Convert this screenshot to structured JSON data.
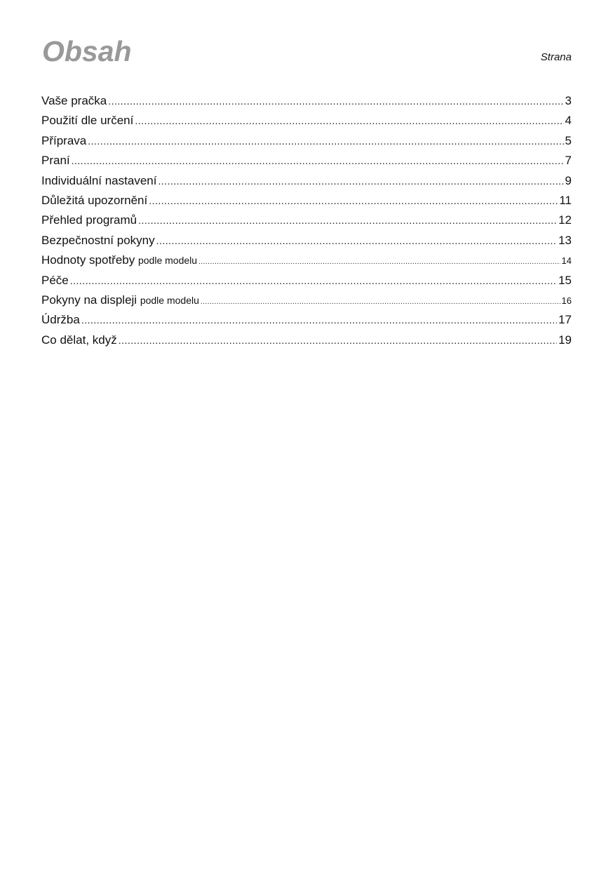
{
  "header": {
    "title": "Obsah",
    "page_column_label": "Strana"
  },
  "toc": [
    {
      "title": "Vaše pračka",
      "note": "",
      "page": "3"
    },
    {
      "title": "Použití dle určení",
      "note": "",
      "page": "4"
    },
    {
      "title": "Příprava",
      "note": "",
      "page": "5"
    },
    {
      "title": "Praní",
      "note": "",
      "page": "7"
    },
    {
      "title": "Individuální nastavení",
      "note": "",
      "page": "9"
    },
    {
      "title": "Důležitá upozornění",
      "note": "",
      "page": "11"
    },
    {
      "title": "Přehled programů",
      "note": "",
      "page": "12"
    },
    {
      "title": "Bezpečnostní pokyny",
      "note": "",
      "page": "13"
    },
    {
      "title": "Hodnoty spotřeby",
      "note": "podle modelu",
      "page": "14"
    },
    {
      "title": "Péče",
      "note": "",
      "page": "15"
    },
    {
      "title": "Pokyny na displeji",
      "note": "podle modelu",
      "page": "16"
    },
    {
      "title": "Údržba",
      "note": "",
      "page": "17"
    },
    {
      "title": "Co dělat, když",
      "note": "",
      "page": "19"
    }
  ]
}
